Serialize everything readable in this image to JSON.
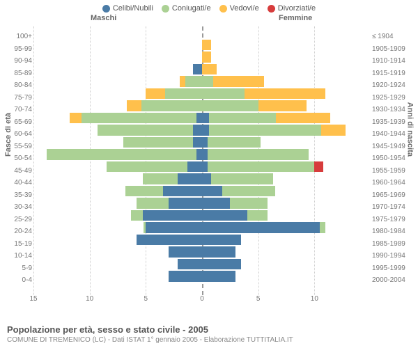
{
  "type": "population-pyramid",
  "legend": [
    {
      "label": "Celibi/Nubili",
      "color": "#4a7ba6"
    },
    {
      "label": "Coniugati/e",
      "color": "#abd194"
    },
    {
      "label": "Vedovi/e",
      "color": "#ffc04c"
    },
    {
      "label": "Divorziati/e",
      "color": "#d73c3c"
    }
  ],
  "header_left": "Maschi",
  "header_right": "Femmine",
  "axis_left_label": "Fasce di età",
  "axis_right_label": "Anni di nascita",
  "x_ticks": [
    15,
    10,
    5,
    0,
    5,
    10
  ],
  "x_max": 15,
  "age_groups": [
    "100+",
    "95-99",
    "90-94",
    "85-89",
    "80-84",
    "75-79",
    "70-74",
    "65-69",
    "60-64",
    "55-59",
    "50-54",
    "45-49",
    "40-44",
    "35-39",
    "30-34",
    "25-29",
    "20-24",
    "15-19",
    "10-14",
    "5-9",
    "0-4"
  ],
  "birth_years": [
    "≤ 1904",
    "1905-1909",
    "1910-1914",
    "1915-1919",
    "1920-1924",
    "1925-1929",
    "1930-1934",
    "1935-1939",
    "1940-1944",
    "1945-1949",
    "1950-1954",
    "1955-1959",
    "1960-1964",
    "1965-1969",
    "1970-1974",
    "1975-1979",
    "1980-1984",
    "1985-1989",
    "1990-1994",
    "1995-1999",
    "2000-2004"
  ],
  "data": {
    "male": [
      [
        0,
        0,
        0,
        0
      ],
      [
        0,
        0,
        0,
        0
      ],
      [
        0,
        0,
        0,
        0
      ],
      [
        0.8,
        0,
        0,
        0
      ],
      [
        0,
        1.5,
        0.5,
        0
      ],
      [
        0,
        3.3,
        1.7,
        0
      ],
      [
        0,
        5.4,
        1.3,
        0
      ],
      [
        0.5,
        10.2,
        1.1,
        0
      ],
      [
        0.8,
        8.5,
        0,
        0
      ],
      [
        0.8,
        6.2,
        0,
        0
      ],
      [
        0.5,
        13.3,
        0,
        0
      ],
      [
        1.3,
        7.2,
        0,
        0
      ],
      [
        2.2,
        3.1,
        0,
        0
      ],
      [
        3.5,
        3.3,
        0,
        0
      ],
      [
        3.0,
        2.8,
        0,
        0
      ],
      [
        5.3,
        1.0,
        0,
        0
      ],
      [
        5.0,
        0.2,
        0,
        0
      ],
      [
        5.8,
        0,
        0,
        0
      ],
      [
        3.0,
        0,
        0,
        0
      ],
      [
        2.2,
        0,
        0,
        0
      ],
      [
        3.0,
        0,
        0,
        0
      ]
    ],
    "female": [
      [
        0,
        0,
        0,
        0
      ],
      [
        0,
        0,
        0.8,
        0
      ],
      [
        0,
        0,
        0.8,
        0
      ],
      [
        0,
        0,
        1.3,
        0
      ],
      [
        0,
        1.0,
        4.5,
        0
      ],
      [
        0,
        3.8,
        7.2,
        0
      ],
      [
        0,
        5.0,
        4.3,
        0
      ],
      [
        0.6,
        6.0,
        4.8,
        0
      ],
      [
        0.6,
        10.0,
        2.2,
        0
      ],
      [
        0.5,
        4.7,
        0,
        0
      ],
      [
        0.5,
        9.0,
        0,
        0
      ],
      [
        0.5,
        9.5,
        0,
        0.8
      ],
      [
        0.8,
        5.5,
        0,
        0
      ],
      [
        1.8,
        4.7,
        0,
        0
      ],
      [
        2.5,
        3.3,
        0,
        0
      ],
      [
        4.0,
        1.8,
        0,
        0
      ],
      [
        10.5,
        0.5,
        0,
        0
      ],
      [
        3.5,
        0,
        0,
        0
      ],
      [
        3.0,
        0,
        0,
        0
      ],
      [
        3.5,
        0,
        0,
        0
      ],
      [
        3.0,
        0,
        0,
        0
      ]
    ]
  },
  "colors": {
    "grid": "#cccccc",
    "center": "#999999",
    "bg": "#ffffff"
  },
  "title": "Popolazione per età, sesso e stato civile - 2005",
  "subtitle": "COMUNE DI TREMENICO (LC) - Dati ISTAT 1° gennaio 2005 - Elaborazione TUTTITALIA.IT"
}
